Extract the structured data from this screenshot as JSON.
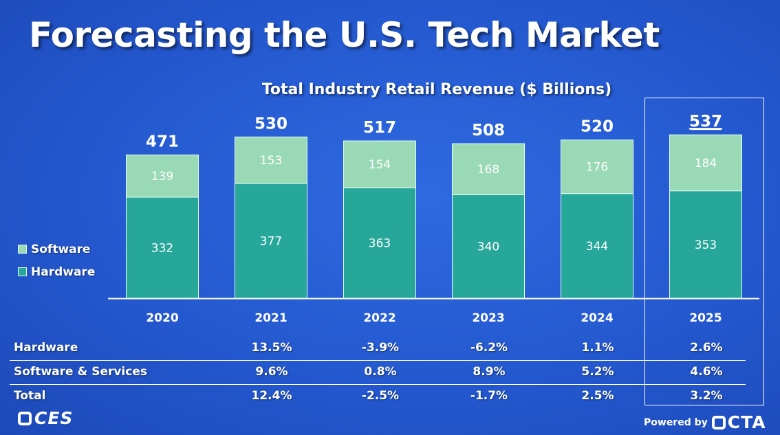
{
  "title": "Forecasting the U.S. Tech Market",
  "legend": [
    {
      "label": "Software",
      "color": "#9ad9b6"
    },
    {
      "label": "Hardware",
      "color": "#27a79a"
    }
  ],
  "chart_data": {
    "type": "bar",
    "stacked": true,
    "title": "Total Industry Retail Revenue ($ Billions)",
    "categories": [
      "2020",
      "2021",
      "2022",
      "2023",
      "2024",
      "2025"
    ],
    "series": [
      {
        "name": "Hardware",
        "values": [
          332,
          377,
          363,
          340,
          344,
          353
        ],
        "color": "#27a79a"
      },
      {
        "name": "Software",
        "values": [
          139,
          153,
          154,
          168,
          176,
          184
        ],
        "color": "#9ad9b6"
      }
    ],
    "totals": [
      "471",
      "530",
      "517",
      "508",
      "520",
      "537"
    ],
    "ylim": [
      0,
      560
    ],
    "grid": false,
    "legend_position": "left",
    "highlight_category": "2025"
  },
  "growth_table": {
    "rows": [
      {
        "label": "Hardware",
        "values": [
          "13.5%",
          "-3.9%",
          "-6.2%",
          "1.1%",
          "2.6%"
        ]
      },
      {
        "label": "Software & Services",
        "values": [
          "9.6%",
          "0.8%",
          "8.9%",
          "5.2%",
          "4.6%"
        ]
      },
      {
        "label": "Total",
        "values": [
          "12.4%",
          "-2.5%",
          "-1.7%",
          "2.5%",
          "3.2%"
        ]
      }
    ]
  },
  "footer": {
    "left_logo": "CES",
    "powered_by": "Powered by",
    "right_logo": "CTA"
  }
}
